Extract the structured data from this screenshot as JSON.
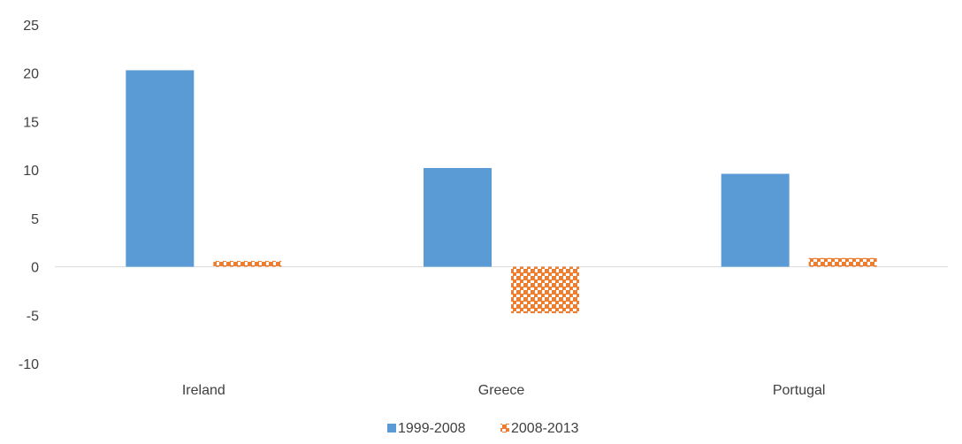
{
  "chart_data": {
    "type": "bar",
    "categories": [
      "Ireland",
      "Greece",
      "Portugal"
    ],
    "series": [
      {
        "name": "1999-2008",
        "values": [
          20.3,
          10.2,
          9.6
        ],
        "color": "#5b9bd5",
        "fill": "solid"
      },
      {
        "name": "2008-2013",
        "values": [
          0.6,
          -4.8,
          0.9
        ],
        "color": "#ed7d31",
        "fill": "checker-pattern"
      }
    ],
    "ylim": [
      -10,
      25
    ],
    "yticks": [
      -10,
      -5,
      0,
      5,
      10,
      15,
      20,
      25
    ],
    "ytick_labels": [
      "-10",
      "-5",
      "0",
      "5",
      "10",
      "15",
      "20",
      "25"
    ],
    "title": "",
    "xlabel": "",
    "ylabel": "",
    "grid": false,
    "legend": "bottom"
  }
}
